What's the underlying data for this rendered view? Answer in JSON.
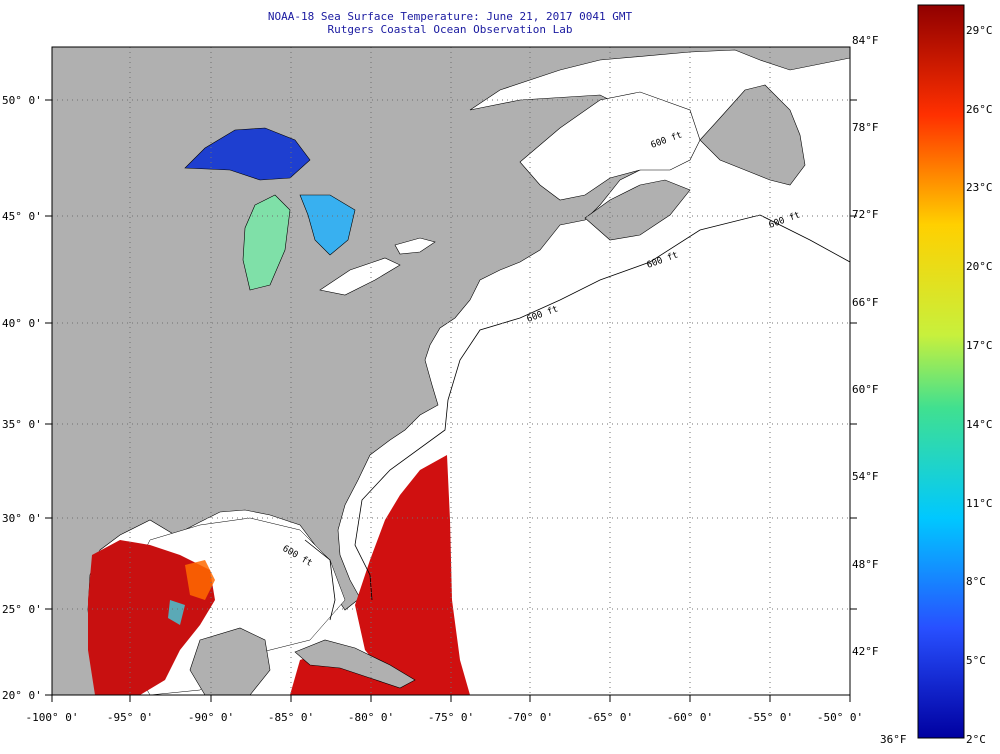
{
  "title_line1": "NOAA-18 Sea Surface Temperature:  June 21, 2017 0041 GMT",
  "title_line2": "Rutgers Coastal Ocean Observation Lab",
  "lat_labels": [
    "50° 0'",
    "45° 0'",
    "40° 0'",
    "35° 0'",
    "30° 0'",
    "25° 0'",
    "20° 0'"
  ],
  "lon_labels": [
    "-100° 0'",
    "-95° 0'",
    "-90° 0'",
    "-85° 0'",
    "-80° 0'",
    "-75° 0'",
    "-70° 0'",
    "-65° 0'",
    "-60° 0'",
    "-55° 0'",
    "-50° 0'"
  ],
  "depth_label": "600 ft",
  "colorbar": {
    "fahrenheit": [
      "84°F",
      "78°F",
      "72°F",
      "66°F",
      "60°F",
      "54°F",
      "48°F",
      "42°F",
      "36°F"
    ],
    "celsius": [
      "29°C",
      "26°C",
      "23°C",
      "20°C",
      "17°C",
      "14°C",
      "11°C",
      "8°C",
      "5°C",
      "2°C"
    ],
    "colors": [
      "#7a0000",
      "#c00000",
      "#ff2a00",
      "#ff8000",
      "#ffd000",
      "#ffff33",
      "#b4f03c",
      "#4de08c",
      "#1fd0d8",
      "#14a6f0",
      "#1460e0",
      "#0a28c8",
      "#00008a"
    ]
  },
  "colors": {
    "land": "#b0b0b0",
    "ocean": "#ffffff",
    "title": "#1a1aa0",
    "grid": "#707070"
  }
}
